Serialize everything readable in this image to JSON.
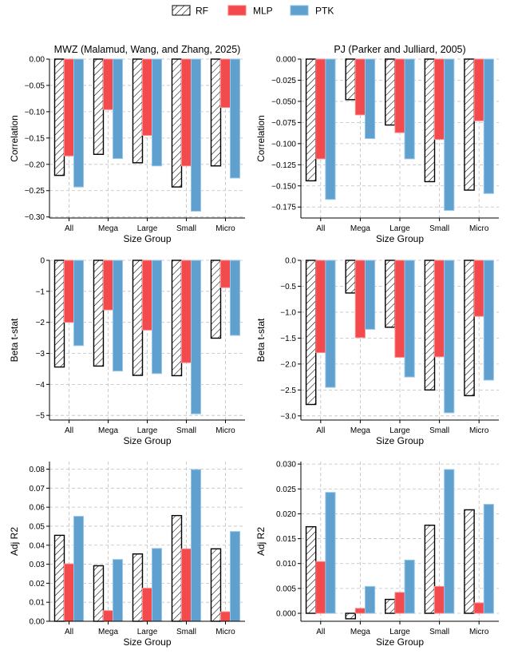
{
  "legend": [
    {
      "label": "RF",
      "key": "rf"
    },
    {
      "label": "MLP",
      "key": "mlp"
    },
    {
      "label": "PTK",
      "key": "ptk"
    }
  ],
  "colors": {
    "rf_fill": "#ffffff",
    "rf_edge": "#000000",
    "mlp": "#f24a4d",
    "ptk": "#5fa0cf"
  },
  "chart_data": [
    {
      "type": "bar",
      "title": "MWZ (Malamud, Wang, and Zhang, 2025)",
      "xlabel": "Size Group",
      "ylabel": "Correlation",
      "categories": [
        "All",
        "Mega",
        "Large",
        "Small",
        "Micro"
      ],
      "ylim": [
        -0.302,
        0
      ],
      "yticks": [
        0,
        -0.05,
        -0.1,
        -0.15,
        -0.2,
        -0.25,
        -0.3
      ],
      "ytick_labels": [
        "0.00",
        "−0.05",
        "−0.10",
        "−0.15",
        "−0.20",
        "−0.25",
        "−0.30"
      ],
      "series": [
        {
          "name": "RF",
          "values": [
            -0.221,
            -0.181,
            -0.197,
            -0.243,
            -0.203
          ]
        },
        {
          "name": "MLP",
          "values": [
            -0.184,
            -0.096,
            -0.145,
            -0.203,
            -0.092
          ]
        },
        {
          "name": "PTK",
          "values": [
            -0.243,
            -0.189,
            -0.203,
            -0.289,
            -0.226
          ]
        }
      ]
    },
    {
      "type": "bar",
      "title": "PJ (Parker and Julliard, 2005)",
      "xlabel": "Size Group",
      "ylabel": "Correlation",
      "categories": [
        "All",
        "Mega",
        "Large",
        "Small",
        "Micro"
      ],
      "ylim": [
        -0.188,
        0
      ],
      "yticks": [
        0,
        -0.025,
        -0.05,
        -0.075,
        -0.1,
        -0.125,
        -0.15,
        -0.175
      ],
      "ytick_labels": [
        "0.000",
        "−0.025",
        "−0.050",
        "−0.075",
        "−0.100",
        "−0.125",
        "−0.150",
        "−0.175"
      ],
      "series": [
        {
          "name": "RF",
          "values": [
            -0.144,
            -0.048,
            -0.078,
            -0.145,
            -0.155
          ]
        },
        {
          "name": "MLP",
          "values": [
            -0.118,
            -0.066,
            -0.087,
            -0.095,
            -0.073
          ]
        },
        {
          "name": "PTK",
          "values": [
            -0.166,
            -0.094,
            -0.118,
            -0.179,
            -0.159
          ]
        }
      ]
    },
    {
      "type": "bar",
      "title": "",
      "xlabel": "Size Group",
      "ylabel": "Beta t-stat",
      "categories": [
        "All",
        "Mega",
        "Large",
        "Small",
        "Micro"
      ],
      "ylim": [
        -5.15,
        0
      ],
      "yticks": [
        0,
        -1,
        -2,
        -3,
        -4,
        -5
      ],
      "ytick_labels": [
        "0",
        "−1",
        "−2",
        "−3",
        "−4",
        "−5"
      ],
      "series": [
        {
          "name": "RF",
          "values": [
            -3.44,
            -3.41,
            -3.71,
            -3.72,
            -2.51
          ]
        },
        {
          "name": "MLP",
          "values": [
            -2.0,
            -1.6,
            -2.25,
            -3.3,
            -0.88
          ]
        },
        {
          "name": "PTK",
          "values": [
            -2.75,
            -3.57,
            -3.65,
            -4.95,
            -2.42
          ]
        }
      ]
    },
    {
      "type": "bar",
      "title": "",
      "xlabel": "Size Group",
      "ylabel": "Beta t-stat",
      "categories": [
        "All",
        "Mega",
        "Large",
        "Small",
        "Micro"
      ],
      "ylim": [
        -3.08,
        0
      ],
      "yticks": [
        0,
        -0.5,
        -1,
        -1.5,
        -2,
        -2.5,
        -3
      ],
      "ytick_labels": [
        "0.0",
        "−0.5",
        "−1.0",
        "−1.5",
        "−2.0",
        "−2.5",
        "−3.0"
      ],
      "series": [
        {
          "name": "RF",
          "values": [
            -2.78,
            -0.63,
            -1.29,
            -2.5,
            -2.61
          ]
        },
        {
          "name": "MLP",
          "values": [
            -1.78,
            -1.49,
            -1.87,
            -1.86,
            -1.08
          ]
        },
        {
          "name": "PTK",
          "values": [
            -2.45,
            -1.33,
            -2.25,
            -2.94,
            -2.31
          ]
        }
      ]
    },
    {
      "type": "bar",
      "title": "",
      "xlabel": "Size Group",
      "ylabel": "Adj R2",
      "categories": [
        "All",
        "Mega",
        "Large",
        "Small",
        "Micro"
      ],
      "ylim": [
        0,
        0.084
      ],
      "yticks": [
        0,
        0.01,
        0.02,
        0.03,
        0.04,
        0.05,
        0.06,
        0.07,
        0.08
      ],
      "ytick_labels": [
        "0.00",
        "0.01",
        "0.02",
        "0.03",
        "0.04",
        "0.05",
        "0.06",
        "0.07",
        "0.08"
      ],
      "series": [
        {
          "name": "RF",
          "values": [
            0.0452,
            0.0292,
            0.0354,
            0.0556,
            0.0381
          ]
        },
        {
          "name": "MLP",
          "values": [
            0.0302,
            0.0056,
            0.0174,
            0.0381,
            0.005
          ]
        },
        {
          "name": "PTK",
          "values": [
            0.0552,
            0.0325,
            0.0383,
            0.0798,
            0.0472
          ]
        }
      ]
    },
    {
      "type": "bar",
      "title": "",
      "xlabel": "Size Group",
      "ylabel": "Adj R2",
      "categories": [
        "All",
        "Mega",
        "Large",
        "Small",
        "Micro"
      ],
      "ylim": [
        -0.0016,
        0.0305
      ],
      "yticks": [
        0,
        0.005,
        0.01,
        0.015,
        0.02,
        0.025,
        0.03
      ],
      "ytick_labels": [
        "0.000",
        "0.005",
        "0.010",
        "0.015",
        "0.020",
        "0.025",
        "0.030"
      ],
      "series": [
        {
          "name": "RF",
          "values": [
            0.0174,
            -0.0011,
            0.0028,
            0.0177,
            0.0208
          ]
        },
        {
          "name": "MLP",
          "values": [
            0.0104,
            0.001,
            0.0042,
            0.0054,
            0.0021
          ]
        },
        {
          "name": "PTK",
          "values": [
            0.0243,
            0.0054,
            0.0107,
            0.0289,
            0.0219
          ]
        }
      ]
    }
  ]
}
